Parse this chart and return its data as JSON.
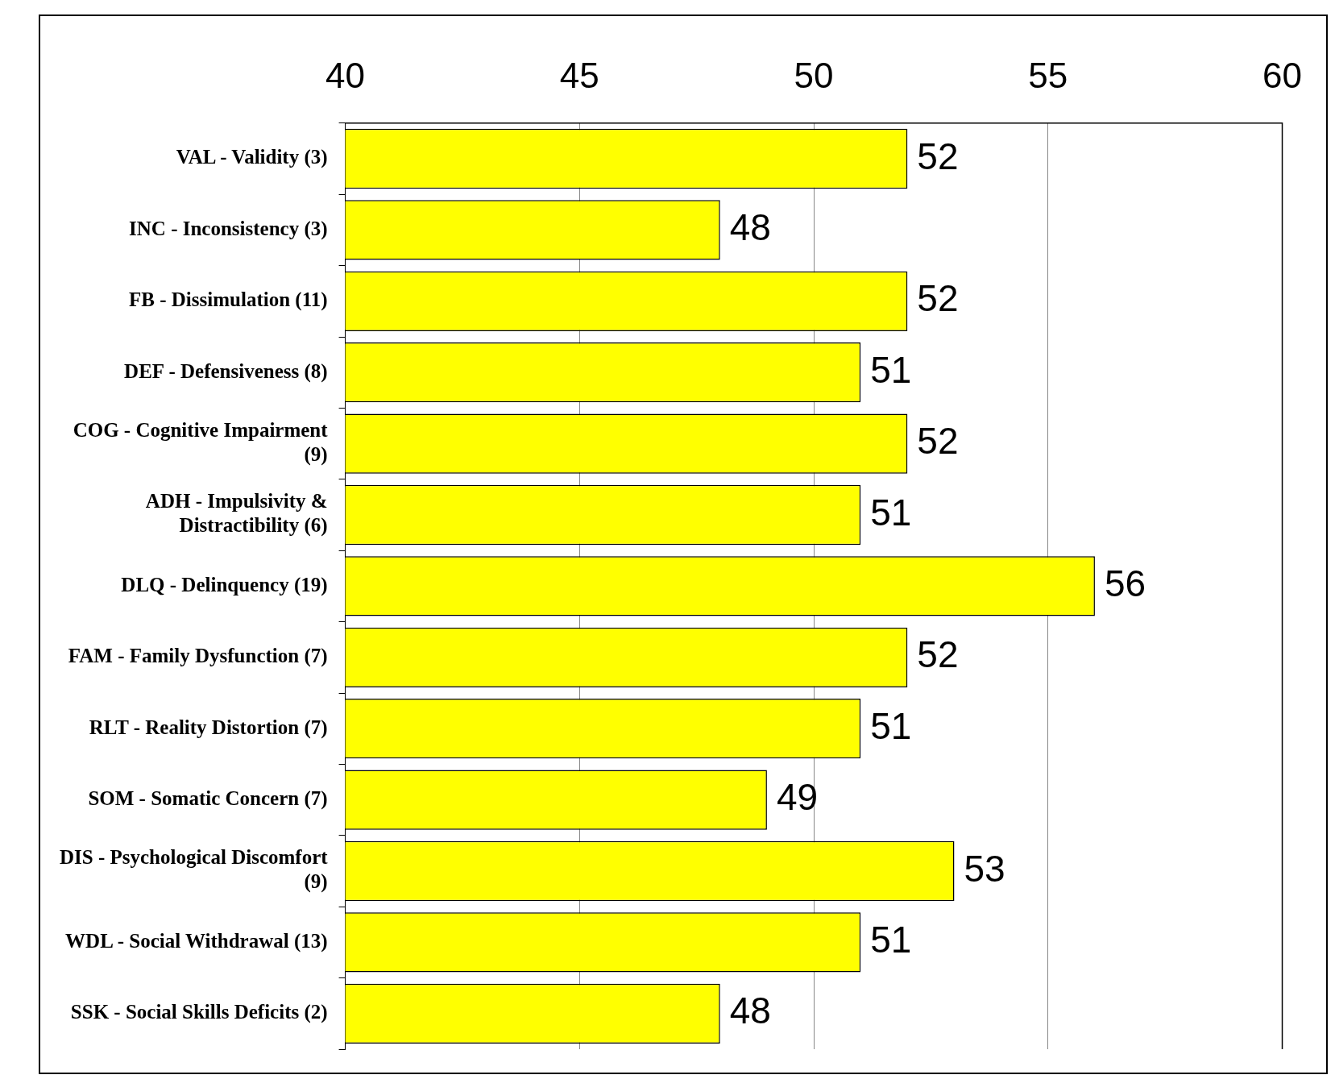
{
  "chart_data": {
    "type": "bar",
    "orientation": "horizontal",
    "categories": [
      "VAL - Validity (3)",
      "INC - Inconsistency (3)",
      "FB - Dissimulation (11)",
      "DEF - Defensiveness (8)",
      "COG - Cognitive Impairment (9)",
      "ADH - Impulsivity & Distractibility (6)",
      "DLQ - Delinquency (19)",
      "FAM - Family Dysfunction (7)",
      "RLT - Reality Distortion (7)",
      "SOM - Somatic Concern (7)",
      "DIS - Psychological Discomfort (9)",
      "WDL - Social Withdrawal (13)",
      "SSK - Social Skills Deficits (2)"
    ],
    "values": [
      52,
      48,
      52,
      51,
      52,
      51,
      56,
      52,
      51,
      49,
      53,
      51,
      48
    ],
    "color": "#ffff00",
    "xlim": [
      40,
      60
    ],
    "xticks": [
      40,
      45,
      50,
      55,
      60
    ],
    "grid": "x",
    "legend": false,
    "data_labels": true
  }
}
